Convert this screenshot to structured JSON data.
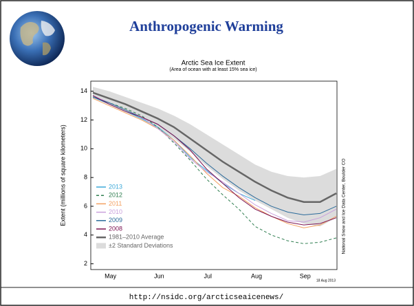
{
  "slide": {
    "title": "Anthropogenic Warming",
    "url": "http://nsidc.org/arcticseaicenews/"
  },
  "chart_data": {
    "type": "line",
    "title": "Arctic Sea Ice Extent",
    "subtitle": "(Area of ocean with at least 15% sea ice)",
    "y_label": "Extent (millions of square kilometers)",
    "credit": "National Snow and Ice Data Center, Boulder CO",
    "date_note": "18 Aug 2013",
    "categories": [
      null,
      "May",
      null,
      null,
      "Jun",
      null,
      null,
      "Jul",
      null,
      null,
      "Aug",
      null,
      null,
      "Sep",
      null,
      null
    ],
    "ylim": [
      1.6,
      14.7
    ],
    "yticks": [
      2,
      4,
      6,
      8,
      10,
      12,
      14
    ],
    "band": {
      "name": "±2 Standard Deviations",
      "color": "#dcdcdc",
      "upper": [
        14.3,
        14.0,
        13.6,
        13.2,
        12.8,
        12.3,
        11.7,
        11.0,
        10.3,
        9.6,
        8.9,
        8.4,
        8.1,
        8.0,
        8.1,
        8.6
      ],
      "lower": [
        13.5,
        13.1,
        12.6,
        12.0,
        11.4,
        10.7,
        9.8,
        8.8,
        7.9,
        7.1,
        6.4,
        5.8,
        5.2,
        4.8,
        4.6,
        5.2
      ]
    },
    "series": [
      {
        "name": "2013",
        "color": "#3aa8d8",
        "dash": false,
        "values": [
          13.6,
          13.1,
          12.6,
          12.1,
          11.5,
          10.6,
          9.4,
          8.5,
          7.6,
          6.9,
          6.4,
          null,
          null,
          null,
          null,
          null
        ]
      },
      {
        "name": "2012",
        "color": "#2e7d4f",
        "dash": true,
        "values": [
          13.6,
          13.2,
          12.8,
          12.3,
          11.5,
          10.4,
          9.2,
          7.9,
          6.8,
          5.8,
          4.6,
          4.0,
          3.6,
          3.4,
          3.5,
          3.8
        ]
      },
      {
        "name": "2011",
        "color": "#f4a060",
        "dash": false,
        "values": [
          13.5,
          13.0,
          12.5,
          12.0,
          11.4,
          10.6,
          9.5,
          8.3,
          7.3,
          6.7,
          5.9,
          5.3,
          4.8,
          4.5,
          4.7,
          5.3
        ]
      },
      {
        "name": "2010",
        "color": "#c9a0dc",
        "dash": false,
        "values": [
          13.7,
          13.2,
          12.7,
          12.2,
          11.4,
          10.5,
          9.3,
          8.4,
          7.7,
          6.9,
          6.1,
          5.5,
          5.0,
          4.9,
          5.2,
          5.8
        ]
      },
      {
        "name": "2009",
        "color": "#2a6a9a",
        "dash": false,
        "values": [
          13.6,
          13.2,
          12.7,
          12.2,
          11.7,
          10.9,
          10.0,
          9.0,
          8.1,
          7.3,
          6.6,
          6.0,
          5.6,
          5.4,
          5.5,
          6.0
        ]
      },
      {
        "name": "2008",
        "color": "#7a1050",
        "dash": false,
        "values": [
          13.7,
          13.1,
          12.6,
          12.2,
          11.7,
          10.9,
          9.9,
          8.6,
          7.6,
          6.6,
          5.8,
          5.3,
          4.9,
          4.7,
          4.8,
          5.2
        ]
      },
      {
        "name": "1981–2010 Average",
        "color": "#666666",
        "dash": false,
        "width": 2.5,
        "values": [
          13.9,
          13.5,
          13.1,
          12.6,
          12.1,
          11.5,
          10.7,
          9.9,
          9.1,
          8.4,
          7.7,
          7.1,
          6.6,
          6.3,
          6.3,
          6.9
        ]
      }
    ]
  }
}
